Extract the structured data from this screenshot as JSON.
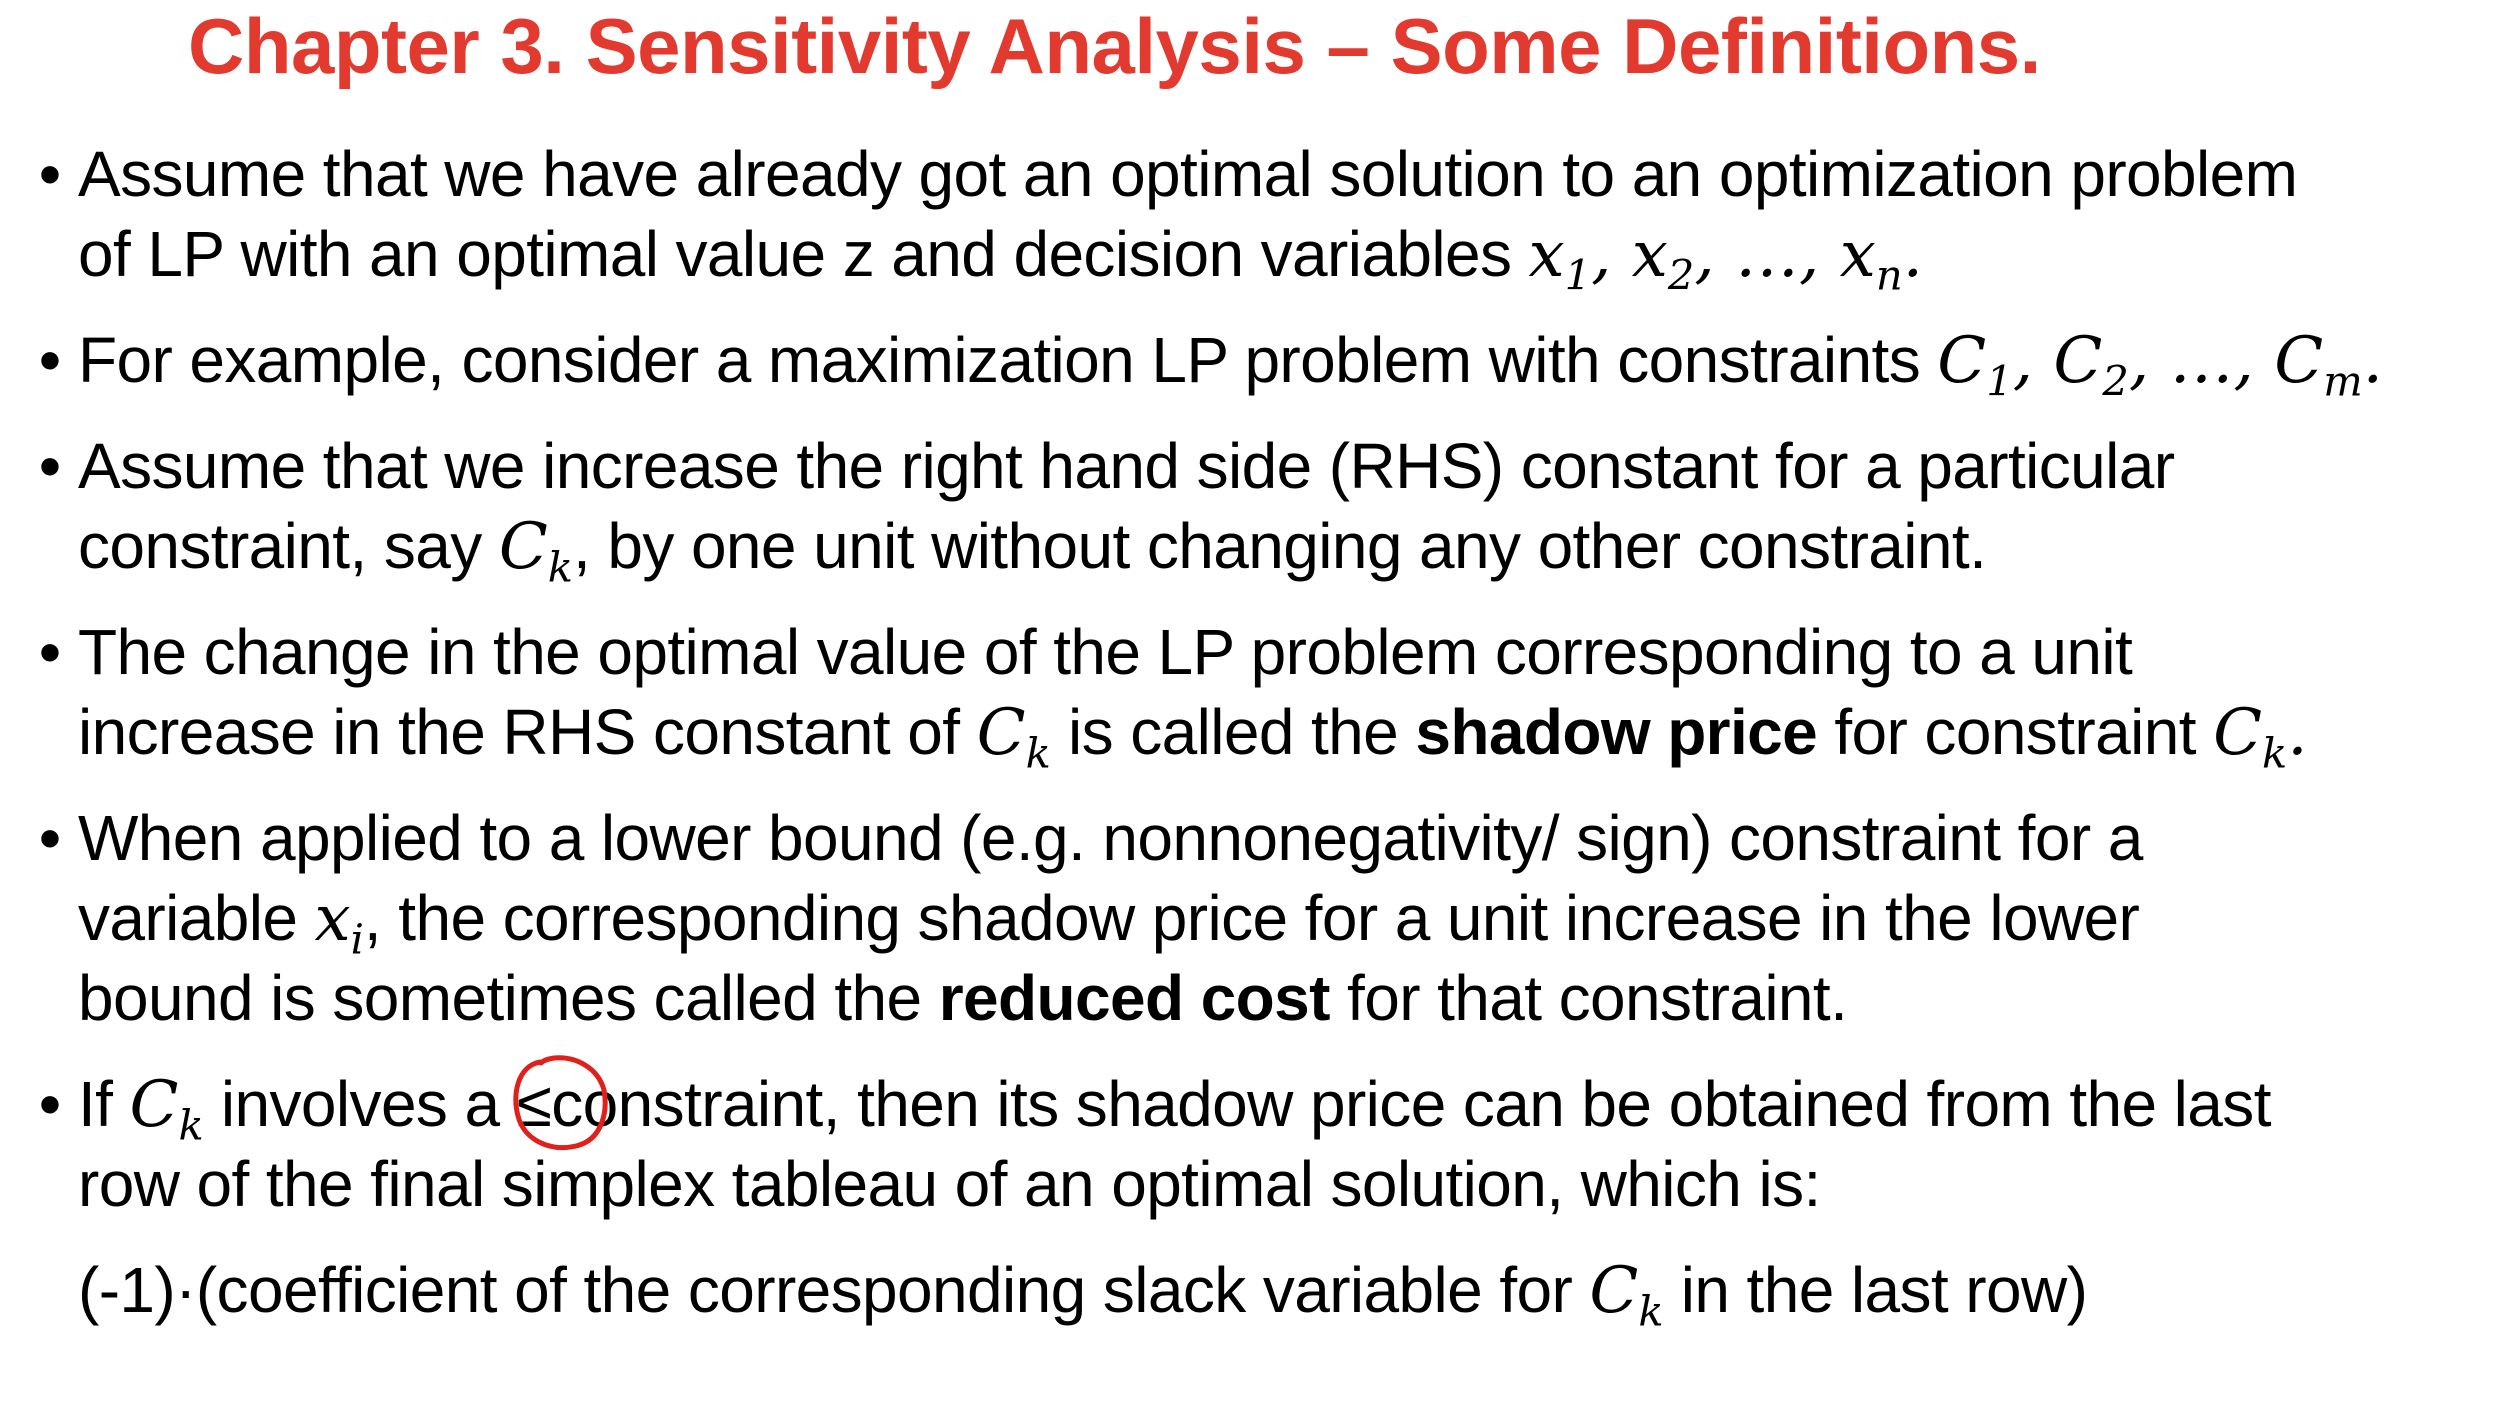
{
  "slide": {
    "title": "Chapter 3. Sensitivity Analysis – Some Definitions.",
    "bullet_symbol": "•",
    "colors": {
      "title": "#e23a2e",
      "annotation": "#e0201a",
      "text": "#000000",
      "background": "#ffffff"
    },
    "b1": {
      "l1": "Assume that we have already got an optimal solution to an optimization problem",
      "l2_a": "of LP with an optimal value z and decision variables ",
      "var_x": "x",
      "sub_1": "1",
      "sub_2": "2",
      "sub_n": "n",
      "sep": ", ",
      "ellipsis": "…",
      "end": "."
    },
    "b2": {
      "text": "For example, consider a maximization LP problem with constraints ",
      "var_c": "C",
      "sub_1": "1",
      "sub_2": "2",
      "sub_m": "m",
      "sep": ", ",
      "ellipsis": "…",
      "end": "."
    },
    "b3": {
      "l1": "Assume that we increase the right hand side (RHS) constant for a particular",
      "l2_a": "constraint, say ",
      "var_c": "C",
      "sub_k": "k",
      "l2_b": ", by one unit without changing any other constraint."
    },
    "b4": {
      "l1": "The change in the optimal value of the LP problem corresponding to a unit",
      "l2_a": "increase in the RHS constant of ",
      "var_c": "C",
      "sub_k": "k",
      "l2_b": " is called the ",
      "bold": "shadow price",
      "l2_c": " for constraint ",
      "end": "."
    },
    "b5": {
      "l1": "When applied to a lower bound (e.g. nonnonegativity/ sign) constraint for a",
      "l2_a": "variable ",
      "var_x": "x",
      "sub_i": "i",
      "l2_b": ", the corresponding shadow price for a unit increase in the lower",
      "l3_a": "bound is sometimes called the ",
      "bold": "reduced cost",
      "l3_b": " for that constraint."
    },
    "b6": {
      "l1_a": "If ",
      "var_c": "C",
      "sub_k": "k",
      "l1_b": " involves a ",
      "leq": "≤",
      "l1_c": "constraint, then its shadow price can be obtained from the last",
      "l2": "row of the final simplex tableau of an optimal solution, which is:"
    },
    "formula": {
      "a": "(-1)·(coefficient of the corresponding slack variable for ",
      "var_c": "C",
      "sub_k": "k",
      "b": " in the last row)"
    }
  }
}
